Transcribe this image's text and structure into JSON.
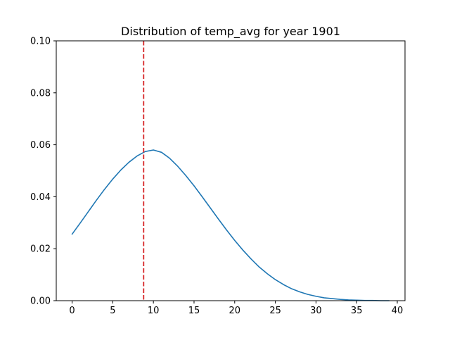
{
  "chart_data": {
    "type": "line",
    "title": "Distribution of temp_avg for year 1901",
    "xlabel": "",
    "ylabel": "",
    "xlim": [
      -1.95,
      40.95
    ],
    "ylim": [
      0.0,
      0.1
    ],
    "xticks": [
      0,
      5,
      10,
      15,
      20,
      25,
      30,
      35,
      40
    ],
    "xtick_labels": [
      "0",
      "5",
      "10",
      "15",
      "20",
      "25",
      "30",
      "35",
      "40"
    ],
    "yticks": [
      0.0,
      0.02,
      0.04,
      0.06,
      0.08,
      0.1
    ],
    "ytick_labels": [
      "0.00",
      "0.02",
      "0.04",
      "0.06",
      "0.08",
      "0.10"
    ],
    "grid": false,
    "series": [
      {
        "color": "#1f77b4",
        "x": [
          0,
          1,
          2,
          3,
          4,
          5,
          6,
          7,
          8,
          9,
          10,
          11,
          12,
          13,
          14,
          15,
          16,
          17,
          18,
          19,
          20,
          21,
          22,
          23,
          24,
          25,
          26,
          27,
          28,
          29,
          30,
          31,
          32,
          33,
          34,
          35,
          36,
          37,
          38,
          39
        ],
        "values": [
          0.0256,
          0.0299,
          0.0343,
          0.0387,
          0.0429,
          0.0468,
          0.0503,
          0.0533,
          0.0557,
          0.0574,
          0.058,
          0.0571,
          0.0548,
          0.0517,
          0.0481,
          0.0442,
          0.04,
          0.0357,
          0.0314,
          0.0272,
          0.0232,
          0.0195,
          0.0161,
          0.013,
          0.0104,
          0.0081,
          0.0062,
          0.0046,
          0.0034,
          0.0024,
          0.0017,
          0.0011,
          0.0008,
          0.0005,
          0.0003,
          0.0002,
          0.0001,
          0.0001,
          0.0,
          0.0
        ]
      }
    ],
    "vline": {
      "x": 8.8,
      "color": "#d62728",
      "style": "dashed"
    }
  }
}
